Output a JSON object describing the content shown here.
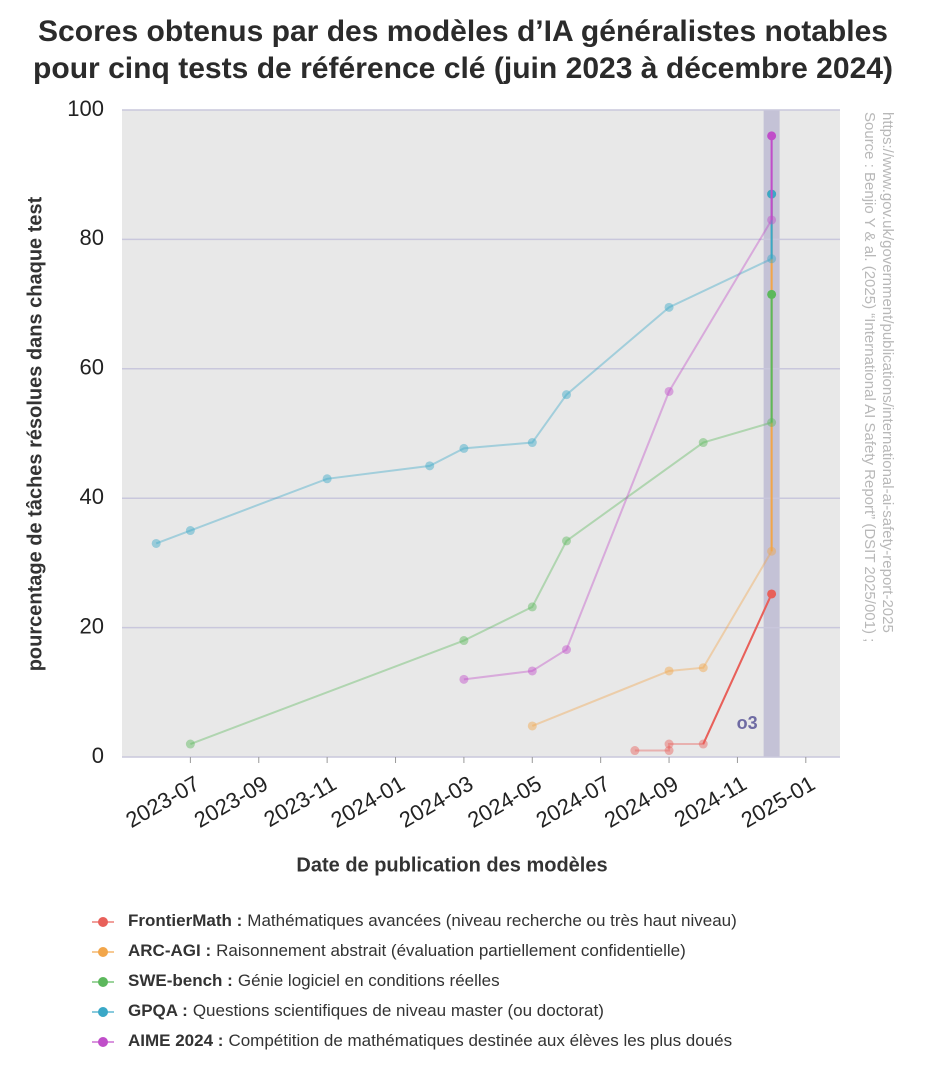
{
  "chart_data": {
    "type": "line",
    "title": [
      "Scores obtenus par des modèles d’IA généralistes notables",
      "pour cinq tests de référence clé (juin 2023 à décembre 2024)"
    ],
    "x_label": "Date de publication des modèles",
    "y_label": "pourcentage de tâches résolues dans chaque test",
    "source": [
      "Source :  Benjio Y & al. (2025) “International AI Safety Report” (DSIT 2025/001) ;",
      "https://www.gov.uk/government/publications/international-ai-safety-report-2025"
    ],
    "annotation": {
      "text": "o3",
      "x": "2024-12"
    },
    "xlim": [
      "2023-05",
      "2025-02"
    ],
    "xticks": [
      "2023-07",
      "2023-09",
      "2023-11",
      "2024-01",
      "2024-03",
      "2024-05",
      "2024-07",
      "2024-09",
      "2024-11",
      "2025-01"
    ],
    "ylim": [
      0,
      100
    ],
    "yticks": [
      0,
      20,
      40,
      60,
      80,
      100
    ],
    "grid": true,
    "series": [
      {
        "name": "FrontierMath :",
        "description": "Mathématiques avancées (niveau recherche ou très haut niveau)",
        "color": "#e8605a",
        "x": [
          "2024-08",
          "2024-09",
          "2024-09",
          "2024-10",
          "2024-12"
        ],
        "values": [
          1,
          1,
          2,
          2,
          25.2
        ]
      },
      {
        "name": "ARC-AGI :",
        "description": "Raisonnement abstrait (évaluation partiellement confidentielle)",
        "color": "#f2a64a",
        "x": [
          "2024-05",
          "2024-09",
          "2024-10",
          "2024-12",
          "2024-12"
        ],
        "values": [
          4.8,
          13.3,
          13.8,
          31.8,
          87
        ]
      },
      {
        "name": "SWE-bench :",
        "description": "Génie logiciel en conditions réelles",
        "color": "#5cb85c",
        "x": [
          "2023-07",
          "2024-03",
          "2024-05",
          "2024-06",
          "2024-10",
          "2024-12",
          "2024-12"
        ],
        "values": [
          2,
          18,
          23.2,
          33.4,
          48.6,
          51.7,
          71.5
        ]
      },
      {
        "name": "GPQA :",
        "description": "Questions scientifiques de niveau master (ou doctorat)",
        "color": "#3aa8c7",
        "x": [
          "2023-06",
          "2023-07",
          "2023-11",
          "2024-02",
          "2024-03",
          "2024-05",
          "2024-06",
          "2024-09",
          "2024-12",
          "2024-12"
        ],
        "values": [
          33,
          35,
          43,
          45,
          47.7,
          48.6,
          56,
          69.5,
          77,
          87
        ]
      },
      {
        "name": "AIME 2024 :",
        "description": "Compétition de mathématiques destinée aux élèves les plus doués",
        "color": "#c04ec9",
        "x": [
          "2024-03",
          "2024-05",
          "2024-06",
          "2024-09",
          "2024-12",
          "2024-12"
        ],
        "values": [
          12,
          13.3,
          16.6,
          56.5,
          83,
          96
        ]
      }
    ]
  }
}
